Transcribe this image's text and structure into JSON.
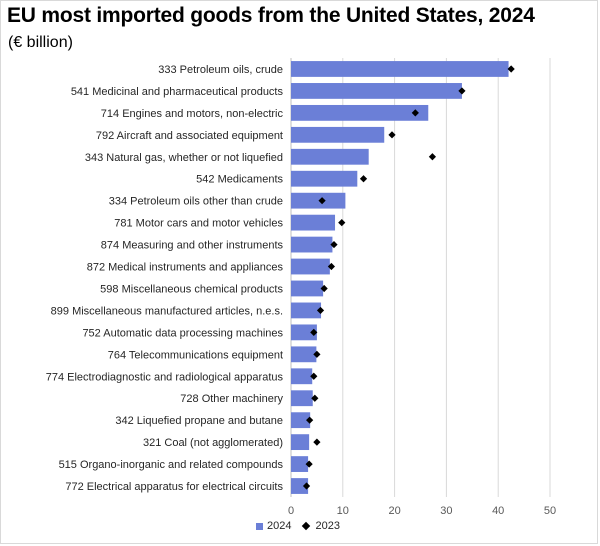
{
  "chart_data": {
    "type": "bar",
    "orientation": "horizontal",
    "title": "EU most imported goods from the United States, 2024",
    "subtitle": "(€ billion)",
    "categories": [
      "333 Petroleum oils, crude",
      "541 Medicinal and pharmaceutical products",
      "714 Engines and motors, non-electric",
      "792 Aircraft and associated equipment",
      "343 Natural gas, whether or not liquefied",
      "542 Medicaments",
      "334 Petroleum oils other than crude",
      "781 Motor cars and motor vehicles",
      "874 Measuring and other instruments",
      "872 Medical instruments and appliances",
      "598 Miscellaneous chemical products",
      "899 Miscellaneous manufactured articles, n.e.s.",
      "752 Automatic data processing machines",
      "764 Telecommunications equipment",
      "774 Electrodiagnostic and radiological apparatus",
      "728 Other machinery",
      "342 Liquefied propane and butane",
      "321 Coal (not agglomerated)",
      "515 Organo-inorganic and related compounds",
      "772 Electrical apparatus for electrical circuits"
    ],
    "series": [
      {
        "name": "2024",
        "marker": "bar",
        "color": "#6b7fd7",
        "values": [
          42,
          33,
          26.5,
          18,
          15,
          12.8,
          10.5,
          8.5,
          8,
          7.5,
          6.2,
          5.8,
          5,
          4.9,
          4.1,
          4.2,
          3.7,
          3.5,
          3.3,
          3.3
        ]
      },
      {
        "name": "2023",
        "marker": "diamond",
        "color": "#000000",
        "values": [
          42.5,
          33,
          24,
          19.5,
          27.3,
          14,
          6,
          9.8,
          8.3,
          7.8,
          6.4,
          5.7,
          4.4,
          5,
          4.4,
          4.6,
          3.6,
          5,
          3.5,
          3
        ]
      }
    ],
    "xlim": [
      0,
      50
    ],
    "xticks": [
      0,
      10,
      20,
      30,
      40,
      50
    ],
    "grid": "vertical",
    "legend": "bottom"
  }
}
